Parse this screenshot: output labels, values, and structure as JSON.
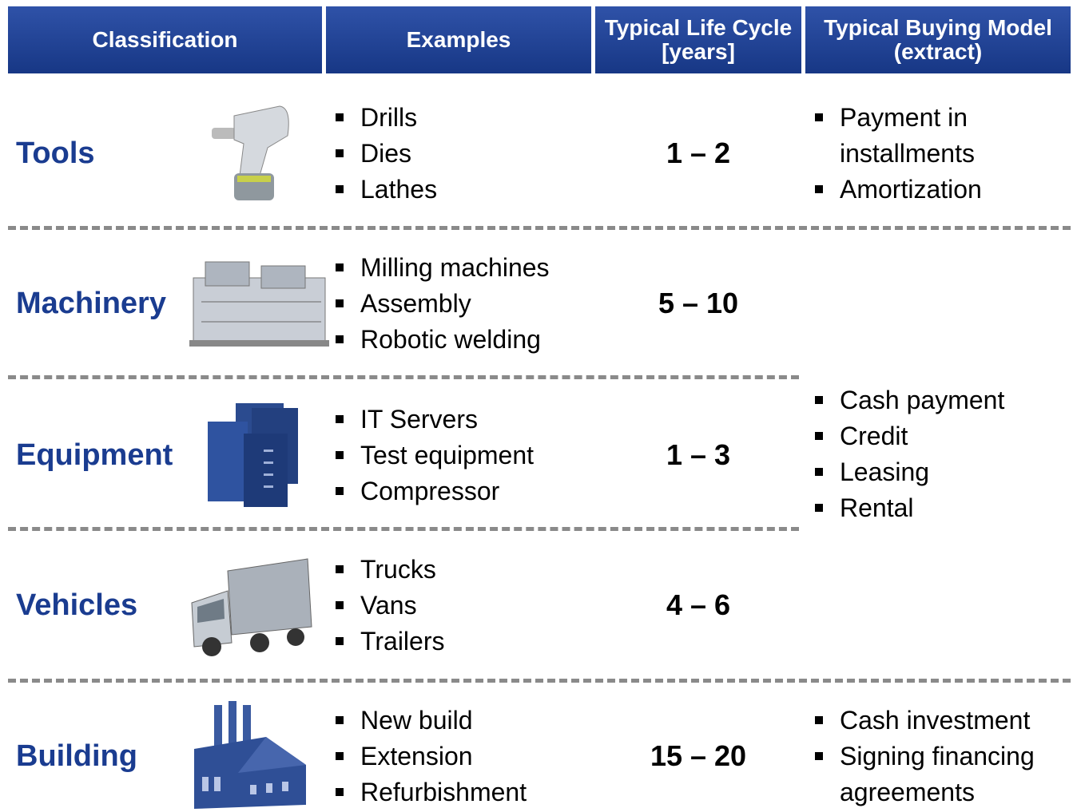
{
  "header": {
    "columns": [
      "Classification",
      "Examples",
      "Typical Life Cycle [years]",
      "Typical Buying Model (extract)"
    ]
  },
  "rows": [
    {
      "classification": "Tools",
      "examples": [
        "Drills",
        "Dies",
        "Lathes"
      ],
      "life_cycle": "1 – 2"
    },
    {
      "classification": "Machinery",
      "examples": [
        "Milling machines",
        "Assembly",
        "Robotic welding"
      ],
      "life_cycle": "5 – 10"
    },
    {
      "classification": "Equipment",
      "examples": [
        "IT Servers",
        "Test equipment",
        "Compressor"
      ],
      "life_cycle": "1 – 3"
    },
    {
      "classification": "Vehicles",
      "examples": [
        "Trucks",
        "Vans",
        "Trailers"
      ],
      "life_cycle": "4 – 6"
    },
    {
      "classification": "Building",
      "examples": [
        "New build",
        "Extension",
        "Refurbishment"
      ],
      "life_cycle": "15 – 20"
    }
  ],
  "buying_models": [
    {
      "items": [
        "Payment in installments",
        "Amortization"
      ]
    },
    {
      "items": [
        "Cash payment",
        "Credit",
        "Leasing",
        "Rental"
      ]
    },
    {
      "items": [
        "Cash investment",
        "Signing financing agreements"
      ]
    }
  ]
}
